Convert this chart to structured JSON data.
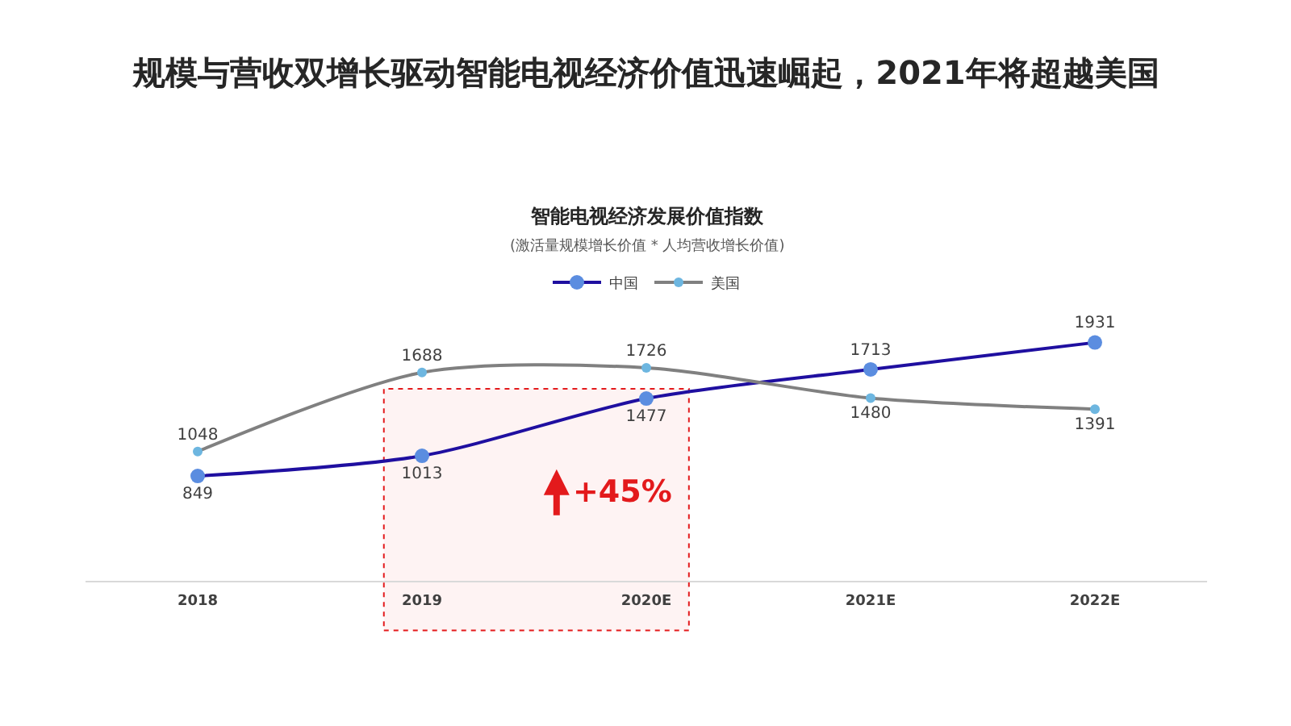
{
  "chart_data": {
    "type": "line",
    "title": "规模与营收双增长驱动智能电视经济价值迅速崛起，2021年将超越美国",
    "subtitle": "智能电视经济发展价值指数",
    "annotations": [
      "(激活量规模增长价值 * 人均营收增长价值)"
    ],
    "categories": [
      "2018",
      "2019",
      "2020E",
      "2021E",
      "2022E"
    ],
    "series": [
      {
        "name": "中国",
        "color": "#1f0fa0",
        "colors": [
          "#5b8de0",
          "#5b8de0",
          "#5b8de0",
          "#5b8de0",
          "#5b8de0"
        ],
        "values": [
          849,
          1013,
          1477,
          1713,
          1931
        ]
      },
      {
        "name": "美国",
        "color": "#808080",
        "colors": [
          "#6db6e0",
          "#6db6e0",
          "#6db6e0",
          "#6db6e0",
          "#6db6e0"
        ],
        "values": [
          1048,
          1688,
          1726,
          1480,
          1391
        ]
      }
    ],
    "data_labels": true,
    "bands": [
      {
        "axis": "x",
        "from": "2019",
        "to": "2020E",
        "label": "+45%",
        "color": "#e31a1c"
      }
    ],
    "legend": "top",
    "marker": "circle",
    "line_style": "solid"
  }
}
